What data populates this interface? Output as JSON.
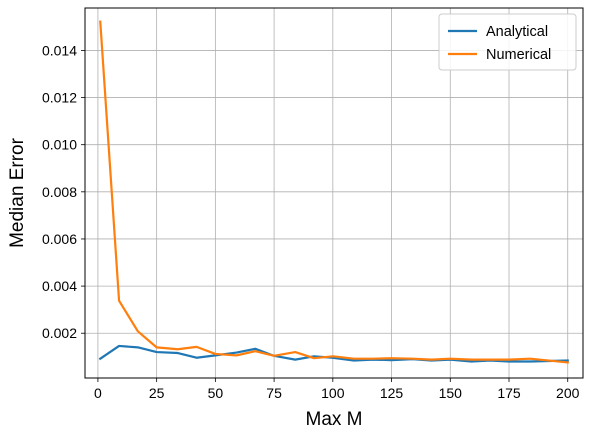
{
  "chart_data": {
    "type": "line",
    "title": "",
    "xlabel": "Max M",
    "ylabel": "Median Error",
    "xlim": [
      -5.5,
      206.5
    ],
    "ylim": [
      0.0001,
      0.0158
    ],
    "xticks": [
      0,
      25,
      50,
      75,
      100,
      125,
      150,
      175,
      200
    ],
    "xtick_labels": [
      "0",
      "25",
      "50",
      "75",
      "100",
      "125",
      "150",
      "175",
      "200"
    ],
    "yticks": [
      0.002,
      0.004,
      0.006,
      0.008,
      0.01,
      0.012,
      0.014
    ],
    "ytick_labels": [
      "0.002",
      "0.004",
      "0.006",
      "0.008",
      "0.010",
      "0.012",
      "0.014"
    ],
    "grid": true,
    "legend_position": "top-right",
    "x": [
      1,
      9,
      17,
      25,
      34,
      42,
      50,
      59,
      67,
      75,
      84,
      92,
      100,
      109,
      117,
      125,
      134,
      142,
      150,
      159,
      167,
      175,
      184,
      192,
      200
    ],
    "series": [
      {
        "name": "Analytical",
        "color": "#1f77b4",
        "values": [
          0.00092,
          0.00146,
          0.0014,
          0.0012,
          0.00116,
          0.00096,
          0.00106,
          0.00118,
          0.00134,
          0.00104,
          0.00088,
          0.00102,
          0.00096,
          0.00084,
          0.00088,
          0.00086,
          0.0009,
          0.00084,
          0.00088,
          0.0008,
          0.00084,
          0.0008,
          0.0008,
          0.00082,
          0.00084
        ]
      },
      {
        "name": "Numerical",
        "color": "#ff7f0e",
        "values": [
          0.01522,
          0.00338,
          0.00208,
          0.0014,
          0.00132,
          0.00142,
          0.00112,
          0.00106,
          0.00124,
          0.00104,
          0.0012,
          0.00094,
          0.00102,
          0.00092,
          0.00092,
          0.00094,
          0.00092,
          0.00088,
          0.00092,
          0.00088,
          0.00088,
          0.00088,
          0.00092,
          0.00084,
          0.00076
        ]
      }
    ]
  }
}
